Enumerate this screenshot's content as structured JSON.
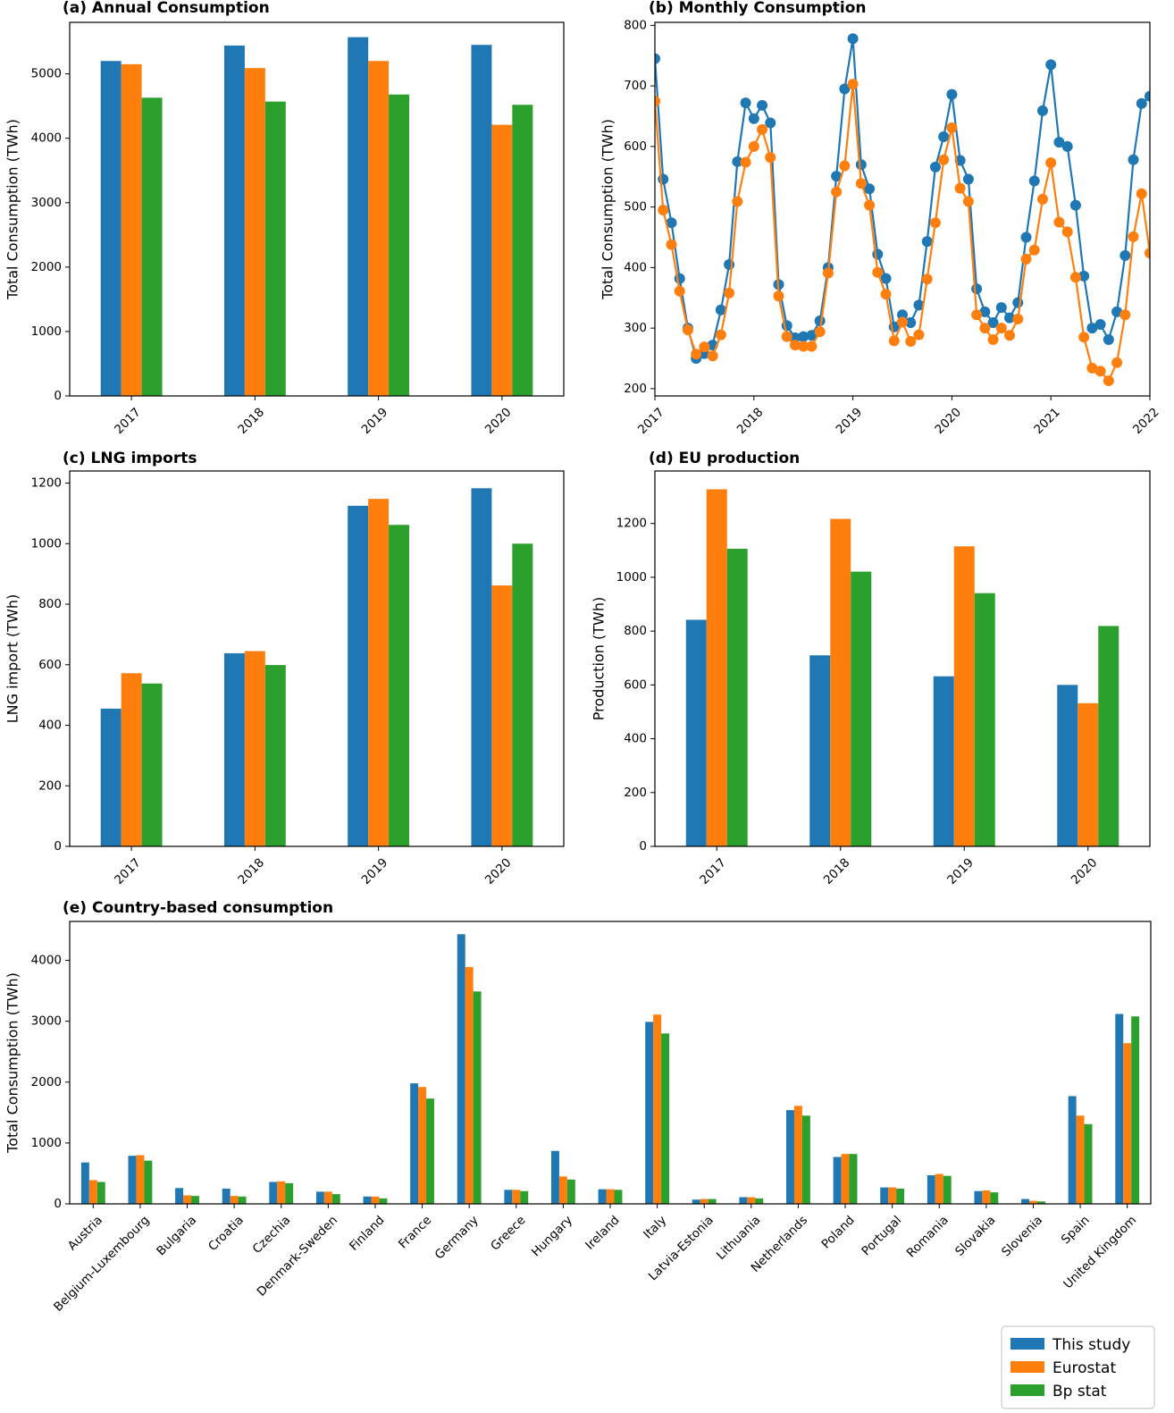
{
  "colors": {
    "this_study": "#1f77b4",
    "eurostat": "#ff7f0e",
    "bp_stat": "#2ca02c"
  },
  "legend": {
    "placement": "bottom-right",
    "entries": [
      "This study",
      "Eurostat",
      "Bp stat"
    ]
  },
  "chart_data": [
    {
      "id": "a",
      "type": "bar",
      "title": "(a) Annual Consumption",
      "xlabel": "",
      "ylabel": "Total Consumption (TWh)",
      "categories": [
        "2017",
        "2018",
        "2019",
        "2020"
      ],
      "ylim": [
        0,
        5800
      ],
      "yticks": [
        0,
        1000,
        2000,
        3000,
        4000,
        5000
      ],
      "series": [
        {
          "name": "This study",
          "values": [
            5200,
            5440,
            5570,
            5450
          ]
        },
        {
          "name": "Eurostat",
          "values": [
            5150,
            5090,
            5200,
            4210
          ]
        },
        {
          "name": "Bp stat",
          "values": [
            4630,
            4570,
            4680,
            4520
          ]
        }
      ]
    },
    {
      "id": "b",
      "type": "line",
      "title": "(b) Monthly Consumption",
      "xlabel": "",
      "ylabel": "Total Consumption (TWh)",
      "xlim": [
        2017,
        2022
      ],
      "xticks": [
        "2017",
        "2018",
        "2019",
        "2020",
        "2021",
        "2022"
      ],
      "ylim": [
        188,
        805
      ],
      "yticks": [
        200,
        300,
        400,
        500,
        600,
        700,
        800
      ],
      "x_start": 2017,
      "x_step_months": 1,
      "series": [
        {
          "name": "This study",
          "values": [
            745,
            546,
            474,
            382,
            300,
            250,
            258,
            272,
            330,
            405,
            575,
            672,
            646,
            668,
            639,
            372,
            304,
            284,
            286,
            288,
            312,
            400,
            551,
            695,
            778,
            570,
            530,
            422,
            382,
            302,
            322,
            309,
            338,
            443,
            566,
            616,
            686,
            577,
            546,
            365,
            327,
            309,
            334,
            317,
            342,
            450,
            543,
            659,
            735,
            607,
            600,
            503,
            386,
            300,
            306,
            281,
            327,
            420,
            578,
            671,
            683
          ]
        },
        {
          "name": "Eurostat",
          "values": [
            675,
            495,
            438,
            361,
            297,
            257,
            269,
            254,
            289,
            358,
            509,
            574,
            600,
            628,
            582,
            353,
            286,
            272,
            270,
            270,
            294,
            391,
            525,
            568,
            703,
            539,
            503,
            392,
            356,
            279,
            310,
            278,
            289,
            381,
            474,
            578,
            631,
            531,
            509,
            322,
            300,
            281,
            300,
            288,
            315,
            414,
            429,
            513,
            573,
            475,
            459,
            384,
            285,
            234,
            229,
            213,
            243,
            322,
            451,
            522,
            424
          ]
        }
      ]
    },
    {
      "id": "c",
      "type": "bar",
      "title": "(c) LNG imports",
      "xlabel": "",
      "ylabel": "LNG import (TWh)",
      "categories": [
        "2017",
        "2018",
        "2019",
        "2020"
      ],
      "ylim": [
        0,
        1240
      ],
      "yticks": [
        0,
        200,
        400,
        600,
        800,
        1000,
        1200
      ],
      "series": [
        {
          "name": "This study",
          "values": [
            455,
            638,
            1125,
            1183
          ]
        },
        {
          "name": "Eurostat",
          "values": [
            572,
            645,
            1148,
            862
          ]
        },
        {
          "name": "Bp stat",
          "values": [
            538,
            599,
            1062,
            1000
          ]
        }
      ]
    },
    {
      "id": "d",
      "type": "bar",
      "title": "(d) EU production",
      "xlabel": "",
      "ylabel": "Production (TWh)",
      "categories": [
        "2017",
        "2018",
        "2019",
        "2020"
      ],
      "ylim": [
        0,
        1395
      ],
      "yticks": [
        0,
        200,
        400,
        600,
        800,
        1000,
        1200
      ],
      "series": [
        {
          "name": "This study",
          "values": [
            842,
            710,
            632,
            600
          ]
        },
        {
          "name": "Eurostat",
          "values": [
            1327,
            1217,
            1115,
            532
          ]
        },
        {
          "name": "Bp stat",
          "values": [
            1106,
            1021,
            941,
            819
          ]
        }
      ]
    },
    {
      "id": "e",
      "type": "bar",
      "title": "(e) Country-based consumption",
      "xlabel": "",
      "ylabel": "Total Consumption (TWh)",
      "categories": [
        "Austria",
        "Belgium-Luxembourg",
        "Bulgaria",
        "Croatia",
        "Czechia",
        "Denmark-Sweden",
        "Finland",
        "France",
        "Germany",
        "Greece",
        "Hungary",
        "Ireland",
        "Italy",
        "Latvia-Estonia",
        "Lithuania",
        "Netherlands",
        "Poland",
        "Portugal",
        "Romania",
        "Slovakia",
        "Slovenia",
        "Spain",
        "United Kingdom"
      ],
      "ylim": [
        0,
        4640
      ],
      "yticks": [
        0,
        1000,
        2000,
        3000,
        4000
      ],
      "series": [
        {
          "name": "This study",
          "values": [
            680,
            790,
            260,
            250,
            360,
            200,
            120,
            1980,
            4430,
            230,
            870,
            240,
            2990,
            70,
            110,
            1540,
            770,
            270,
            470,
            210,
            80,
            1770,
            3120
          ]
        },
        {
          "name": "Eurostat",
          "values": [
            390,
            800,
            140,
            130,
            370,
            200,
            120,
            1920,
            3890,
            230,
            450,
            240,
            3110,
            80,
            110,
            1610,
            820,
            270,
            490,
            220,
            50,
            1450,
            2640
          ]
        },
        {
          "name": "Bp stat",
          "values": [
            360,
            710,
            130,
            120,
            340,
            160,
            90,
            1730,
            3490,
            210,
            400,
            230,
            2800,
            80,
            90,
            1450,
            820,
            250,
            460,
            190,
            40,
            1310,
            3080
          ]
        }
      ]
    }
  ]
}
